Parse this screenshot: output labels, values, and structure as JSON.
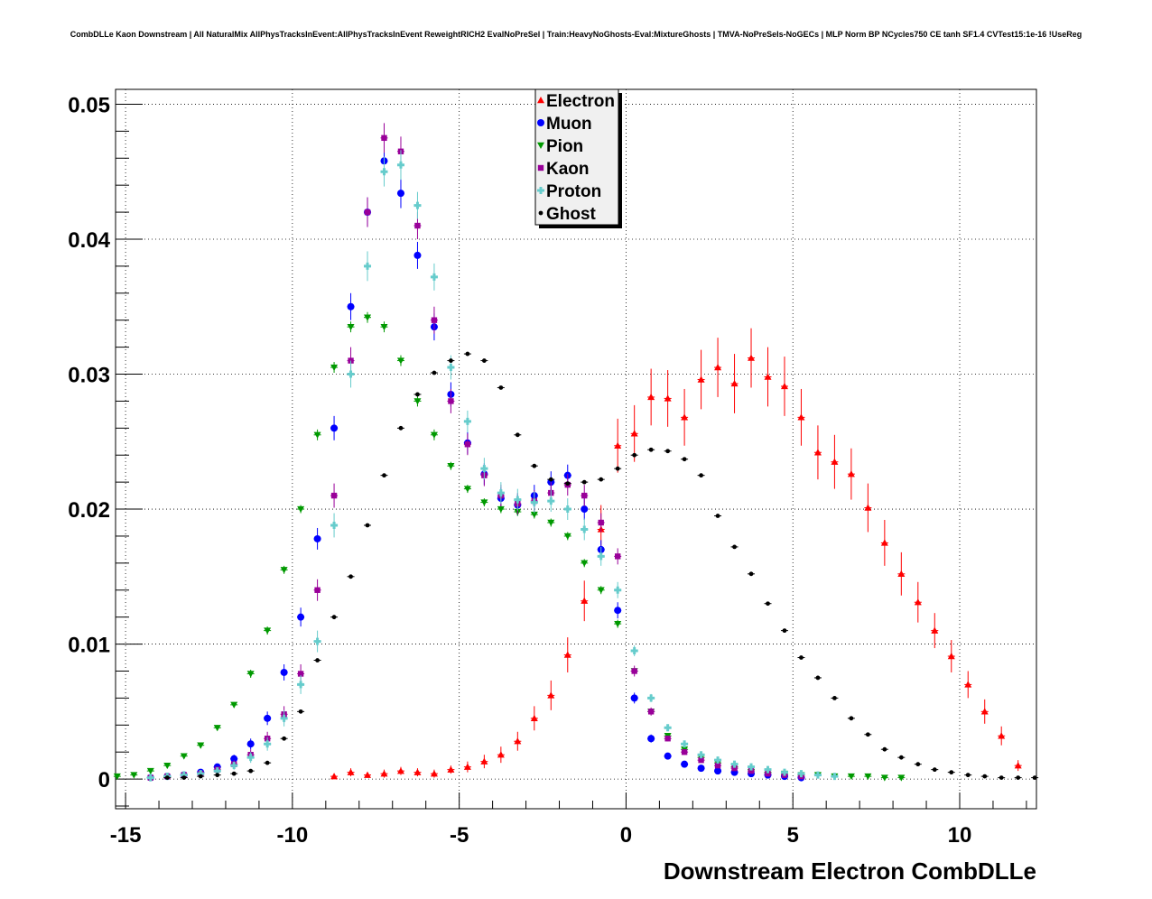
{
  "chart_data": {
    "type": "scatter",
    "title": "CombDLLe Kaon Downstream | All NaturalMix AllPhysTracksInEvent:AllPhysTracksInEvent ReweightRICH2 EvalNoPreSel | Train:HeavyNoGhosts-Eval:MixtureGhosts | TMVA-NoPreSels-NoGECs | MLP Norm BP NCycles750 CE tanh SF1.4 CVTest15:1e-16 !UseReg",
    "xlabel": "Downstream Electron CombDLLe",
    "ylabel": "",
    "xlim": [
      -15.3,
      12.3
    ],
    "ylim": [
      -0.0022,
      0.0511
    ],
    "xticks": [
      -15,
      -10,
      -5,
      0,
      5,
      10
    ],
    "xtick_labels": [
      "-15",
      "-10",
      "-5",
      "0",
      "5",
      "10"
    ],
    "yticks": [
      0,
      0.01,
      0.02,
      0.03,
      0.04,
      0.05
    ],
    "ytick_labels": [
      "0",
      "0.01",
      "0.02",
      "0.03",
      "0.04",
      "0.05"
    ],
    "grid": true,
    "legend_position": "top-center",
    "series": [
      {
        "name": "Electron",
        "color": "#ff0000",
        "marker": "triangle-up",
        "x": [
          -8.75,
          -8.25,
          -7.75,
          -7.25,
          -6.75,
          -6.25,
          -5.75,
          -5.25,
          -4.75,
          -4.25,
          -3.75,
          -3.25,
          -2.75,
          -2.25,
          -1.75,
          -1.25,
          -0.75,
          -0.25,
          0.25,
          0.75,
          1.25,
          1.75,
          2.25,
          2.75,
          3.25,
          3.75,
          4.25,
          4.75,
          5.25,
          5.75,
          6.25,
          6.75,
          7.25,
          7.75,
          8.25,
          8.75,
          9.25,
          9.75,
          10.25,
          10.75,
          11.25,
          11.75
        ],
        "y": [
          0.0002,
          0.0005,
          0.0003,
          0.0004,
          0.0006,
          0.0005,
          0.0004,
          0.0007,
          0.0009,
          0.0013,
          0.0018,
          0.0028,
          0.0045,
          0.0062,
          0.0092,
          0.0132,
          0.0185,
          0.0247,
          0.0256,
          0.0283,
          0.0282,
          0.0268,
          0.0296,
          0.0305,
          0.0293,
          0.0312,
          0.0298,
          0.0291,
          0.0268,
          0.0242,
          0.0235,
          0.0226,
          0.0201,
          0.0175,
          0.0152,
          0.0131,
          0.011,
          0.0091,
          0.007,
          0.005,
          0.0032,
          0.001
        ],
        "yerr": [
          0.0002,
          0.0003,
          0.0002,
          0.0003,
          0.0003,
          0.0003,
          0.0003,
          0.0003,
          0.0004,
          0.0005,
          0.0006,
          0.0007,
          0.0009,
          0.0011,
          0.0013,
          0.0015,
          0.0018,
          0.002,
          0.0021,
          0.0021,
          0.0021,
          0.0021,
          0.0022,
          0.0022,
          0.0022,
          0.0022,
          0.0022,
          0.0022,
          0.0021,
          0.002,
          0.002,
          0.0019,
          0.0018,
          0.0017,
          0.0016,
          0.0015,
          0.0013,
          0.0012,
          0.001,
          0.0009,
          0.0007,
          0.0004
        ]
      },
      {
        "name": "Muon",
        "color": "#0000ff",
        "marker": "circle",
        "x": [
          -14.25,
          -13.75,
          -13.25,
          -12.75,
          -12.25,
          -11.75,
          -11.25,
          -10.75,
          -10.25,
          -9.75,
          -9.25,
          -8.75,
          -8.25,
          -7.75,
          -7.25,
          -6.75,
          -6.25,
          -5.75,
          -5.25,
          -4.75,
          -4.25,
          -3.75,
          -3.25,
          -2.75,
          -2.25,
          -1.75,
          -1.25,
          -0.75,
          -0.25,
          0.25,
          0.75,
          1.25,
          1.75,
          2.25,
          2.75,
          3.25,
          3.75,
          4.25,
          4.75,
          5.25
        ],
        "y": [
          0.0001,
          0.0002,
          0.0003,
          0.0005,
          0.0009,
          0.0015,
          0.0026,
          0.0045,
          0.0079,
          0.012,
          0.0178,
          0.026,
          0.035,
          0.042,
          0.0458,
          0.0434,
          0.0388,
          0.0335,
          0.0285,
          0.0249,
          0.0226,
          0.0208,
          0.0203,
          0.021,
          0.022,
          0.0225,
          0.02,
          0.017,
          0.0125,
          0.006,
          0.003,
          0.0017,
          0.0011,
          0.0008,
          0.0006,
          0.0005,
          0.0004,
          0.0003,
          0.0002,
          0.0001
        ],
        "yerr": [
          0.0001,
          0.0001,
          0.0001,
          0.0002,
          0.0002,
          0.0003,
          0.0004,
          0.0005,
          0.0006,
          0.0007,
          0.0008,
          0.0009,
          0.001,
          0.0011,
          0.0011,
          0.0011,
          0.001,
          0.001,
          0.0009,
          0.0008,
          0.0008,
          0.0008,
          0.0008,
          0.0008,
          0.0008,
          0.0008,
          0.0008,
          0.0007,
          0.0006,
          0.0004,
          0.0003,
          0.0002,
          0.0002,
          0.0001,
          0.0001,
          0.0001,
          0.0001,
          0.0001,
          0.0001,
          0.0001
        ]
      },
      {
        "name": "Pion",
        "color": "#009900",
        "marker": "triangle-down",
        "x": [
          -15.25,
          -14.75,
          -14.25,
          -13.75,
          -13.25,
          -12.75,
          -12.25,
          -11.75,
          -11.25,
          -10.75,
          -10.25,
          -9.75,
          -9.25,
          -8.75,
          -8.25,
          -7.75,
          -7.25,
          -6.75,
          -6.25,
          -5.75,
          -5.25,
          -4.75,
          -4.25,
          -3.75,
          -3.25,
          -2.75,
          -2.25,
          -1.75,
          -1.25,
          -0.75,
          -0.25,
          0.25,
          0.75,
          1.25,
          1.75,
          2.25,
          2.75,
          3.25,
          3.75,
          4.25,
          4.75,
          5.25,
          5.75,
          6.25,
          6.75,
          7.25,
          7.75,
          8.25
        ],
        "y": [
          0.0002,
          0.0003,
          0.0006,
          0.001,
          0.0017,
          0.0025,
          0.0038,
          0.0055,
          0.0078,
          0.011,
          0.0155,
          0.02,
          0.0255,
          0.0305,
          0.0335,
          0.0342,
          0.0335,
          0.031,
          0.028,
          0.0255,
          0.0232,
          0.0215,
          0.0205,
          0.02,
          0.0198,
          0.0196,
          0.019,
          0.018,
          0.016,
          0.014,
          0.0115,
          0.008,
          0.005,
          0.0032,
          0.0022,
          0.0016,
          0.0012,
          0.0009,
          0.0007,
          0.0005,
          0.0004,
          0.0003,
          0.0003,
          0.0002,
          0.0002,
          0.0002,
          0.0001,
          0.0001
        ],
        "yerr": [
          0.0001,
          0.0001,
          0.0001,
          0.0001,
          0.0001,
          0.0002,
          0.0002,
          0.0002,
          0.0003,
          0.0003,
          0.0003,
          0.0003,
          0.0004,
          0.0004,
          0.0004,
          0.0004,
          0.0004,
          0.0004,
          0.0004,
          0.0004,
          0.0003,
          0.0003,
          0.0003,
          0.0003,
          0.0003,
          0.0003,
          0.0003,
          0.0003,
          0.0003,
          0.0003,
          0.0003,
          0.0002,
          0.0002,
          0.0002,
          0.0001,
          0.0001,
          0.0001,
          0.0001,
          0.0001,
          0.0001,
          0.0001,
          0.0001,
          0.0001,
          0.0001,
          0.0001,
          0.0001,
          0.0001,
          0.0001
        ]
      },
      {
        "name": "Kaon",
        "color": "#990099",
        "marker": "square",
        "x": [
          -14.25,
          -13.75,
          -13.25,
          -12.75,
          -12.25,
          -11.75,
          -11.25,
          -10.75,
          -10.25,
          -9.75,
          -9.25,
          -8.75,
          -8.25,
          -7.75,
          -7.25,
          -6.75,
          -6.25,
          -5.75,
          -5.25,
          -4.75,
          -4.25,
          -3.75,
          -3.25,
          -2.75,
          -2.25,
          -1.75,
          -1.25,
          -0.75,
          -0.25,
          0.25,
          0.75,
          1.25,
          1.75,
          2.25,
          2.75,
          3.25,
          3.75,
          4.25,
          4.75,
          5.25
        ],
        "y": [
          0.0001,
          0.0002,
          0.0003,
          0.0004,
          0.0007,
          0.0011,
          0.0018,
          0.003,
          0.0048,
          0.0078,
          0.014,
          0.021,
          0.031,
          0.042,
          0.0475,
          0.0465,
          0.041,
          0.034,
          0.028,
          0.0248,
          0.0225,
          0.021,
          0.0204,
          0.0206,
          0.0212,
          0.0218,
          0.021,
          0.019,
          0.0165,
          0.008,
          0.005,
          0.003,
          0.002,
          0.0014,
          0.001,
          0.0008,
          0.0006,
          0.0004,
          0.0003,
          0.0002
        ],
        "yerr": [
          0.0001,
          0.0001,
          0.0001,
          0.0002,
          0.0002,
          0.0003,
          0.0004,
          0.0005,
          0.0006,
          0.0007,
          0.0008,
          0.0009,
          0.001,
          0.0011,
          0.0011,
          0.0011,
          0.001,
          0.001,
          0.0009,
          0.0008,
          0.0008,
          0.0008,
          0.0008,
          0.0008,
          0.0008,
          0.0008,
          0.0008,
          0.0007,
          0.0006,
          0.0004,
          0.0003,
          0.0002,
          0.0002,
          0.0001,
          0.0001,
          0.0001,
          0.0001,
          0.0001,
          0.0001,
          0.0001
        ]
      },
      {
        "name": "Proton",
        "color": "#66cccc",
        "marker": "cross",
        "x": [
          -14.25,
          -13.75,
          -13.25,
          -12.75,
          -12.25,
          -11.75,
          -11.25,
          -10.75,
          -10.25,
          -9.75,
          -9.25,
          -8.75,
          -8.25,
          -7.75,
          -7.25,
          -6.75,
          -6.25,
          -5.75,
          -5.25,
          -4.75,
          -4.25,
          -3.75,
          -3.25,
          -2.75,
          -2.25,
          -1.75,
          -1.25,
          -0.75,
          -0.25,
          0.25,
          0.75,
          1.25,
          1.75,
          2.25,
          2.75,
          3.25,
          3.75,
          4.25,
          4.75,
          5.25,
          5.75,
          6.25
        ],
        "y": [
          0.0001,
          0.0002,
          0.0003,
          0.0004,
          0.0006,
          0.001,
          0.0016,
          0.0026,
          0.0045,
          0.007,
          0.0102,
          0.0188,
          0.03,
          0.038,
          0.045,
          0.0455,
          0.0425,
          0.0372,
          0.0305,
          0.0265,
          0.023,
          0.0212,
          0.0207,
          0.0205,
          0.0206,
          0.02,
          0.0185,
          0.0165,
          0.014,
          0.0095,
          0.006,
          0.0038,
          0.0026,
          0.0018,
          0.0014,
          0.0011,
          0.0009,
          0.0007,
          0.0005,
          0.0004,
          0.0003,
          0.0002
        ],
        "yerr": [
          0.0001,
          0.0001,
          0.0001,
          0.0002,
          0.0002,
          0.0003,
          0.0004,
          0.0005,
          0.0006,
          0.0007,
          0.0008,
          0.0009,
          0.001,
          0.0011,
          0.0011,
          0.0011,
          0.001,
          0.001,
          0.0009,
          0.0008,
          0.0008,
          0.0008,
          0.0008,
          0.0008,
          0.0008,
          0.0008,
          0.0008,
          0.0007,
          0.0006,
          0.0004,
          0.0003,
          0.0002,
          0.0002,
          0.0001,
          0.0001,
          0.0001,
          0.0001,
          0.0001,
          0.0001,
          0.0001,
          0.0001,
          0.0001
        ]
      },
      {
        "name": "Ghost",
        "color": "#000000",
        "marker": "dot",
        "x": [
          -13.75,
          -13.25,
          -12.75,
          -12.25,
          -11.75,
          -11.25,
          -10.75,
          -10.25,
          -9.75,
          -9.25,
          -8.75,
          -8.25,
          -7.75,
          -7.25,
          -6.75,
          -6.25,
          -5.75,
          -5.25,
          -4.75,
          -4.25,
          -3.75,
          -3.25,
          -2.75,
          -2.25,
          -1.75,
          -1.25,
          -0.75,
          -0.25,
          0.25,
          0.75,
          1.25,
          1.75,
          2.25,
          2.75,
          3.25,
          3.75,
          4.25,
          4.75,
          5.25,
          5.75,
          6.25,
          6.75,
          7.25,
          7.75,
          8.25,
          8.75,
          9.25,
          9.75,
          10.25,
          10.75,
          11.25,
          11.75,
          12.25
        ],
        "y": [
          0.0001,
          0.0001,
          0.0002,
          0.0003,
          0.0004,
          0.0006,
          0.0012,
          0.003,
          0.005,
          0.0088,
          0.012,
          0.015,
          0.0188,
          0.0225,
          0.026,
          0.0285,
          0.0301,
          0.031,
          0.0315,
          0.031,
          0.029,
          0.0255,
          0.0232,
          0.0222,
          0.0219,
          0.022,
          0.0222,
          0.023,
          0.024,
          0.0244,
          0.0243,
          0.0237,
          0.0225,
          0.0195,
          0.0172,
          0.0152,
          0.013,
          0.011,
          0.009,
          0.0075,
          0.006,
          0.0045,
          0.0033,
          0.0022,
          0.0016,
          0.0011,
          0.0007,
          0.0005,
          0.0003,
          0.0002,
          0.0001,
          0.0001,
          0.0001
        ],
        "yerr": [
          0.0001,
          0.0001,
          0.0001,
          0.0001,
          0.0001,
          0.0001,
          0.0001,
          0.0001,
          0.0001,
          0.0001,
          0.0001,
          0.0001,
          0.0001,
          0.0001,
          0.0001,
          0.0001,
          0.0001,
          0.0001,
          0.0001,
          0.0001,
          0.0001,
          0.0001,
          0.0001,
          0.0001,
          0.0001,
          0.0001,
          0.0001,
          0.0001,
          0.0001,
          0.0001,
          0.0001,
          0.0001,
          0.0001,
          0.0001,
          0.0001,
          0.0001,
          0.0001,
          0.0001,
          0.0001,
          0.0001,
          0.0001,
          0.0001,
          0.0001,
          0.0001,
          0.0001,
          0.0001,
          0.0001,
          0.0001,
          0.0001,
          0.0001,
          0.0001,
          0.0001,
          0.0001
        ]
      }
    ]
  }
}
